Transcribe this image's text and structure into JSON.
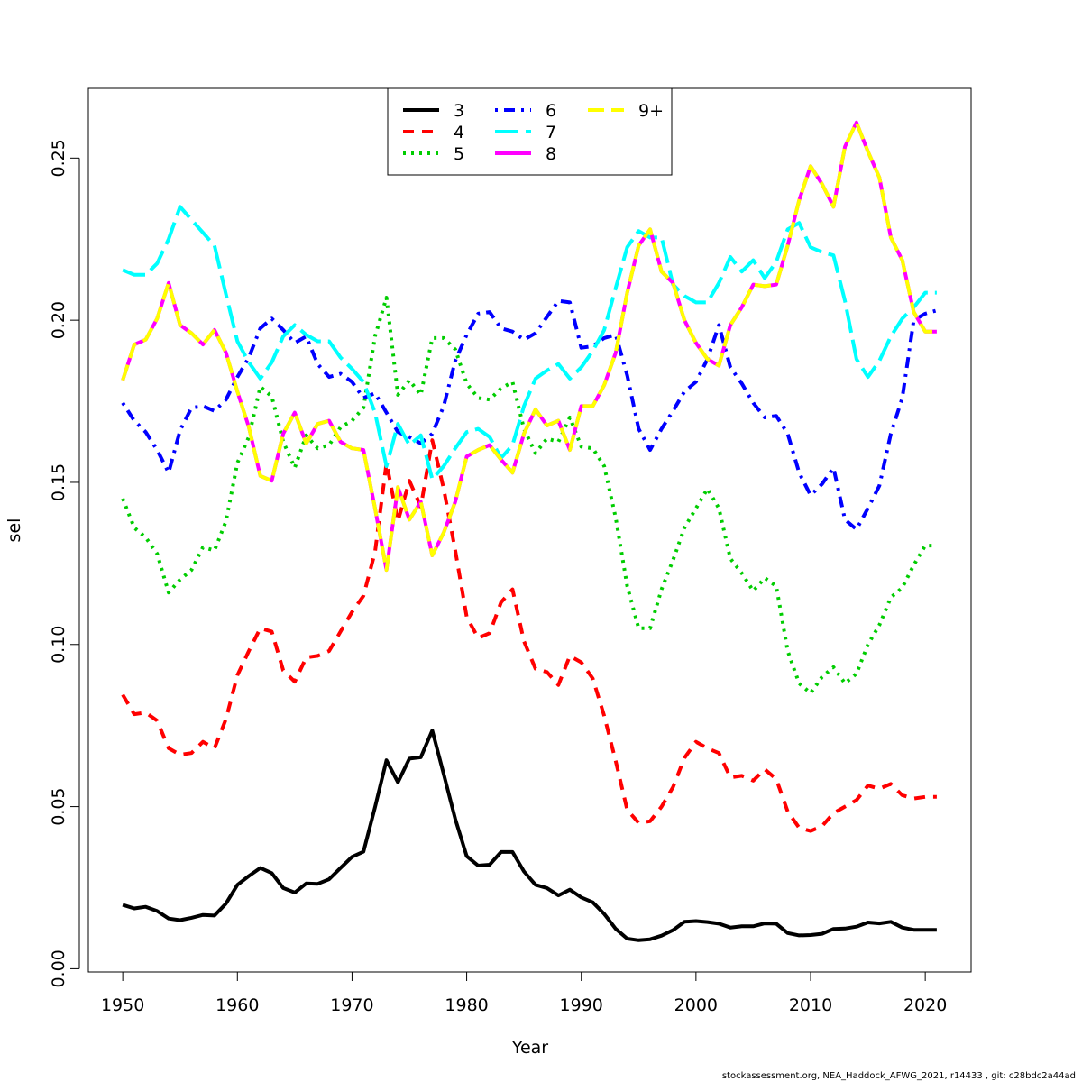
{
  "chart_data": {
    "type": "line",
    "xlabel": "Year",
    "ylabel": "sel",
    "xlim": [
      1947,
      2024
    ],
    "ylim": [
      -0.001,
      0.2715
    ],
    "x_ticks": [
      1950,
      1960,
      1970,
      1980,
      1990,
      2000,
      2010,
      2020
    ],
    "y_ticks": [
      0.0,
      0.05,
      0.1,
      0.15,
      0.2,
      0.25
    ],
    "y_tick_labels": [
      "0.00",
      "0.05",
      "0.10",
      "0.15",
      "0.20",
      "0.25"
    ],
    "legend_position": "top-center",
    "grid": false,
    "footer": "stockassessment.org, NEA_Haddock_AFWG_2021, r14433 , git: c28bdc2a44ad",
    "series": [
      {
        "name": "3",
        "color": "#000000",
        "dash": "solid",
        "x": [
          1950,
          1951,
          1952,
          1953,
          1954,
          1955,
          1956,
          1957,
          1958,
          1959,
          1960,
          1961,
          1962,
          1963,
          1964,
          1965,
          1966,
          1967,
          1968,
          1969,
          1970,
          1971,
          1972,
          1973,
          1974,
          1975,
          1976,
          1977,
          1978,
          1979,
          1980,
          1981,
          1982,
          1983,
          1984,
          1985,
          1986,
          1987,
          1988,
          1989,
          1990,
          1991,
          1992,
          1993,
          1994,
          1995,
          1996,
          1997,
          1998,
          1999,
          2000,
          2001,
          2002,
          2003,
          2004,
          2005,
          2006,
          2007,
          2008,
          2009,
          2010,
          2011,
          2012,
          2013,
          2014,
          2015,
          2016,
          2017,
          2018,
          2019,
          2020,
          2021
        ],
        "values": [
          0.0197,
          0.0186,
          0.0191,
          0.0178,
          0.0155,
          0.015,
          0.0157,
          0.0166,
          0.0164,
          0.0201,
          0.0259,
          0.0286,
          0.0311,
          0.0295,
          0.0249,
          0.0235,
          0.0263,
          0.0262,
          0.0276,
          0.0311,
          0.0345,
          0.0361,
          0.0498,
          0.0643,
          0.0575,
          0.0648,
          0.0652,
          0.0735,
          0.06,
          0.0462,
          0.0347,
          0.0318,
          0.0321,
          0.036,
          0.036,
          0.03,
          0.0259,
          0.0249,
          0.0226,
          0.0244,
          0.022,
          0.0205,
          0.0169,
          0.0123,
          0.0093,
          0.0088,
          0.0091,
          0.0102,
          0.0119,
          0.0145,
          0.0147,
          0.0144,
          0.0139,
          0.0127,
          0.0131,
          0.0131,
          0.014,
          0.0139,
          0.011,
          0.0103,
          0.0104,
          0.0108,
          0.0123,
          0.0124,
          0.013,
          0.0143,
          0.014,
          0.0145,
          0.0127,
          0.012,
          0.012,
          0.012
        ]
      },
      {
        "name": "4",
        "color": "#ff0000",
        "dash": "dashed",
        "x": [
          1950,
          1951,
          1952,
          1953,
          1954,
          1955,
          1956,
          1957,
          1958,
          1959,
          1960,
          1961,
          1962,
          1963,
          1964,
          1965,
          1966,
          1967,
          1968,
          1969,
          1970,
          1971,
          1972,
          1973,
          1974,
          1975,
          1976,
          1977,
          1978,
          1979,
          1980,
          1981,
          1982,
          1983,
          1984,
          1985,
          1986,
          1987,
          1988,
          1989,
          1990,
          1991,
          1992,
          1993,
          1994,
          1995,
          1996,
          1997,
          1998,
          1999,
          2000,
          2001,
          2002,
          2003,
          2004,
          2005,
          2006,
          2007,
          2008,
          2009,
          2010,
          2011,
          2012,
          2013,
          2014,
          2015,
          2016,
          2017,
          2018,
          2019,
          2020,
          2021
        ],
        "values": [
          0.0845,
          0.0785,
          0.079,
          0.0765,
          0.068,
          0.066,
          0.0665,
          0.07,
          0.068,
          0.077,
          0.0905,
          0.098,
          0.105,
          0.104,
          0.092,
          0.0885,
          0.096,
          0.0965,
          0.098,
          0.104,
          0.11,
          0.115,
          0.1285,
          0.156,
          0.138,
          0.1505,
          0.1425,
          0.163,
          0.148,
          0.129,
          0.1085,
          0.102,
          0.1035,
          0.113,
          0.117,
          0.101,
          0.0925,
          0.0915,
          0.0875,
          0.0965,
          0.0945,
          0.0895,
          0.078,
          0.064,
          0.049,
          0.045,
          0.0455,
          0.05,
          0.056,
          0.065,
          0.07,
          0.068,
          0.0665,
          0.059,
          0.0595,
          0.058,
          0.0615,
          0.0585,
          0.0485,
          0.0435,
          0.0425,
          0.044,
          0.048,
          0.05,
          0.052,
          0.0565,
          0.0555,
          0.057,
          0.0535,
          0.0525,
          0.053,
          0.053
        ]
      },
      {
        "name": "5",
        "color": "#00cd00",
        "dash": "dotted",
        "x": [
          1950,
          1951,
          1952,
          1953,
          1954,
          1955,
          1956,
          1957,
          1958,
          1959,
          1960,
          1961,
          1962,
          1963,
          1964,
          1965,
          1966,
          1967,
          1968,
          1969,
          1970,
          1971,
          1972,
          1973,
          1974,
          1975,
          1976,
          1977,
          1978,
          1979,
          1980,
          1981,
          1982,
          1983,
          1984,
          1985,
          1986,
          1987,
          1988,
          1989,
          1990,
          1991,
          1992,
          1993,
          1994,
          1995,
          1996,
          1997,
          1998,
          1999,
          2000,
          2001,
          2002,
          2003,
          2004,
          2005,
          2006,
          2007,
          2008,
          2009,
          2010,
          2011,
          2012,
          2013,
          2014,
          2015,
          2016,
          2017,
          2018,
          2019,
          2020,
          2021
        ],
        "values": [
          0.145,
          0.136,
          0.133,
          0.128,
          0.116,
          0.12,
          0.123,
          0.13,
          0.129,
          0.138,
          0.156,
          0.164,
          0.1795,
          0.1765,
          0.1625,
          0.1545,
          0.1645,
          0.1605,
          0.1615,
          0.167,
          0.169,
          0.173,
          0.195,
          0.207,
          0.177,
          0.1815,
          0.177,
          0.1945,
          0.1945,
          0.191,
          0.1805,
          0.176,
          0.1755,
          0.179,
          0.181,
          0.1665,
          0.159,
          0.1635,
          0.1625,
          0.17,
          0.161,
          0.1605,
          0.155,
          0.139,
          0.118,
          0.105,
          0.105,
          0.117,
          0.126,
          0.136,
          0.142,
          0.148,
          0.142,
          0.1265,
          0.122,
          0.1165,
          0.1205,
          0.118,
          0.098,
          0.088,
          0.085,
          0.09,
          0.093,
          0.088,
          0.091,
          0.1,
          0.106,
          0.1145,
          0.1175,
          0.1245,
          0.1305,
          0.1305
        ]
      },
      {
        "name": "6",
        "color": "#0000ff",
        "dash": "dashdot",
        "x": [
          1950,
          1951,
          1952,
          1953,
          1954,
          1955,
          1956,
          1957,
          1958,
          1959,
          1960,
          1961,
          1962,
          1963,
          1964,
          1965,
          1966,
          1967,
          1968,
          1969,
          1970,
          1971,
          1972,
          1973,
          1974,
          1975,
          1976,
          1977,
          1978,
          1979,
          1980,
          1981,
          1982,
          1983,
          1984,
          1985,
          1986,
          1987,
          1988,
          1989,
          1990,
          1991,
          1992,
          1993,
          1994,
          1995,
          1996,
          1997,
          1998,
          1999,
          2000,
          2001,
          2002,
          2003,
          2004,
          2005,
          2006,
          2007,
          2008,
          2009,
          2010,
          2011,
          2012,
          2013,
          2014,
          2015,
          2016,
          2017,
          2018,
          2019,
          2020,
          2021
        ],
        "values": [
          0.1745,
          0.169,
          0.1655,
          0.16,
          0.153,
          0.166,
          0.173,
          0.1735,
          0.172,
          0.1755,
          0.1825,
          0.1885,
          0.1975,
          0.2005,
          0.197,
          0.193,
          0.195,
          0.1865,
          0.1825,
          0.1835,
          0.181,
          0.176,
          0.1775,
          0.1715,
          0.1655,
          0.164,
          0.162,
          0.165,
          0.1735,
          0.1875,
          0.1955,
          0.202,
          0.2025,
          0.1975,
          0.1965,
          0.194,
          0.196,
          0.201,
          0.206,
          0.2055,
          0.1915,
          0.192,
          0.1945,
          0.1955,
          0.183,
          0.1665,
          0.16,
          0.1665,
          0.172,
          0.178,
          0.181,
          0.188,
          0.1985,
          0.1855,
          0.1805,
          0.1745,
          0.17,
          0.1705,
          0.165,
          0.153,
          0.146,
          0.1495,
          0.1545,
          0.1385,
          0.1355,
          0.142,
          0.149,
          0.165,
          0.176,
          0.2,
          0.202,
          0.203
        ]
      },
      {
        "name": "7",
        "color": "#00ffff",
        "dash": "longdash",
        "x": [
          1950,
          1951,
          1952,
          1953,
          1954,
          1955,
          1956,
          1957,
          1958,
          1959,
          1960,
          1961,
          1962,
          1963,
          1964,
          1965,
          1966,
          1967,
          1968,
          1969,
          1970,
          1971,
          1972,
          1973,
          1974,
          1975,
          1976,
          1977,
          1978,
          1979,
          1980,
          1981,
          1982,
          1983,
          1984,
          1985,
          1986,
          1987,
          1988,
          1989,
          1990,
          1991,
          1992,
          1993,
          1994,
          1995,
          1996,
          1997,
          1998,
          1999,
          2000,
          2001,
          2002,
          2003,
          2004,
          2005,
          2006,
          2007,
          2008,
          2009,
          2010,
          2011,
          2012,
          2013,
          2014,
          2015,
          2016,
          2017,
          2018,
          2019,
          2020,
          2021
        ],
        "values": [
          0.2155,
          0.214,
          0.214,
          0.2175,
          0.225,
          0.235,
          0.231,
          0.227,
          0.223,
          0.208,
          0.1935,
          0.187,
          0.182,
          0.187,
          0.195,
          0.1985,
          0.1955,
          0.1935,
          0.1935,
          0.1885,
          0.185,
          0.181,
          0.1715,
          0.155,
          0.168,
          0.1615,
          0.1645,
          0.151,
          0.155,
          0.1605,
          0.1655,
          0.1665,
          0.164,
          0.1575,
          0.1615,
          0.1735,
          0.182,
          0.1845,
          0.1865,
          0.182,
          0.1855,
          0.1905,
          0.197,
          0.21,
          0.2225,
          0.2275,
          0.2255,
          0.2255,
          0.211,
          0.2075,
          0.2055,
          0.2055,
          0.2115,
          0.2195,
          0.215,
          0.2185,
          0.213,
          0.218,
          0.228,
          0.23,
          0.2225,
          0.221,
          0.22,
          0.206,
          0.188,
          0.1825,
          0.1875,
          0.195,
          0.2005,
          0.204,
          0.2085,
          0.2085
        ]
      },
      {
        "name": "8",
        "color": "#ff00ff",
        "dash": "solid",
        "x": [
          1950,
          1951,
          1952,
          1953,
          1954,
          1955,
          1956,
          1957,
          1958,
          1959,
          1960,
          1961,
          1962,
          1963,
          1964,
          1965,
          1966,
          1967,
          1968,
          1969,
          1970,
          1971,
          1972,
          1973,
          1974,
          1975,
          1976,
          1977,
          1978,
          1979,
          1980,
          1981,
          1982,
          1983,
          1984,
          1985,
          1986,
          1987,
          1988,
          1989,
          1990,
          1991,
          1992,
          1993,
          1994,
          1995,
          1996,
          1997,
          1998,
          1999,
          2000,
          2001,
          2002,
          2003,
          2004,
          2005,
          2006,
          2007,
          2008,
          2009,
          2010,
          2011,
          2012,
          2013,
          2014,
          2015,
          2016,
          2017,
          2018,
          2019,
          2020,
          2021
        ],
        "values": [
          0.1815,
          0.1925,
          0.194,
          0.2005,
          0.2115,
          0.1985,
          0.196,
          0.1925,
          0.197,
          0.19,
          0.178,
          0.167,
          0.152,
          0.1505,
          0.165,
          0.1715,
          0.162,
          0.168,
          0.169,
          0.1625,
          0.1605,
          0.16,
          0.142,
          0.123,
          0.1485,
          0.1385,
          0.144,
          0.1275,
          0.1345,
          0.144,
          0.158,
          0.16,
          0.1615,
          0.157,
          0.153,
          0.165,
          0.1725,
          0.1675,
          0.169,
          0.16,
          0.1735,
          0.1735,
          0.18,
          0.19,
          0.2085,
          0.223,
          0.228,
          0.215,
          0.2115,
          0.2,
          0.193,
          0.188,
          0.186,
          0.1985,
          0.204,
          0.211,
          0.2105,
          0.211,
          0.223,
          0.237,
          0.2475,
          0.242,
          0.235,
          0.2535,
          0.261,
          0.252,
          0.244,
          0.2255,
          0.2185,
          0.2025,
          0.1965,
          0.1965
        ]
      },
      {
        "name": "9+",
        "color": "#ffff00",
        "dash": "dashed-long",
        "x": [
          1950,
          1951,
          1952,
          1953,
          1954,
          1955,
          1956,
          1957,
          1958,
          1959,
          1960,
          1961,
          1962,
          1963,
          1964,
          1965,
          1966,
          1967,
          1968,
          1969,
          1970,
          1971,
          1972,
          1973,
          1974,
          1975,
          1976,
          1977,
          1978,
          1979,
          1980,
          1981,
          1982,
          1983,
          1984,
          1985,
          1986,
          1987,
          1988,
          1989,
          1990,
          1991,
          1992,
          1993,
          1994,
          1995,
          1996,
          1997,
          1998,
          1999,
          2000,
          2001,
          2002,
          2003,
          2004,
          2005,
          2006,
          2007,
          2008,
          2009,
          2010,
          2011,
          2012,
          2013,
          2014,
          2015,
          2016,
          2017,
          2018,
          2019,
          2020,
          2021
        ],
        "values": [
          0.1815,
          0.1925,
          0.194,
          0.2005,
          0.2115,
          0.1985,
          0.196,
          0.1925,
          0.197,
          0.19,
          0.178,
          0.167,
          0.152,
          0.1505,
          0.165,
          0.1715,
          0.162,
          0.168,
          0.169,
          0.1625,
          0.1605,
          0.16,
          0.142,
          0.123,
          0.1485,
          0.1385,
          0.144,
          0.1275,
          0.1345,
          0.144,
          0.158,
          0.16,
          0.1615,
          0.157,
          0.153,
          0.165,
          0.1725,
          0.1675,
          0.169,
          0.16,
          0.1735,
          0.1735,
          0.18,
          0.19,
          0.2085,
          0.223,
          0.228,
          0.215,
          0.2115,
          0.2,
          0.193,
          0.188,
          0.186,
          0.1985,
          0.204,
          0.211,
          0.2105,
          0.211,
          0.223,
          0.237,
          0.2475,
          0.242,
          0.235,
          0.2535,
          0.261,
          0.252,
          0.244,
          0.2255,
          0.2185,
          0.2025,
          0.1965,
          0.1965
        ]
      }
    ]
  }
}
